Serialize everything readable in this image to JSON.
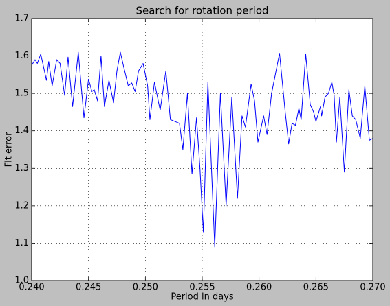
{
  "chart_data": {
    "type": "line",
    "title": "Search for rotation period",
    "x_label": "Period in days",
    "y_label": "Fit error",
    "xlim": [
      0.24,
      0.27
    ],
    "ylim": [
      1.0,
      1.7
    ],
    "xticks": [
      {
        "value": 0.24,
        "label": "0.240"
      },
      {
        "value": 0.245,
        "label": "0.245"
      },
      {
        "value": 0.25,
        "label": "0.250"
      },
      {
        "value": 0.255,
        "label": "0.255"
      },
      {
        "value": 0.26,
        "label": "0.260"
      },
      {
        "value": 0.265,
        "label": "0.265"
      },
      {
        "value": 0.27,
        "label": "0.270"
      }
    ],
    "yticks": [
      {
        "value": 1.0,
        "label": "1.0"
      },
      1.1,
      1.2,
      1.3,
      1.4,
      1.5,
      1.6,
      1.7
    ],
    "grid": true,
    "series": [
      {
        "name": "fit error",
        "color": "#0000ff",
        "x": [
          0.24,
          0.2403,
          0.2405,
          0.2408,
          0.2413,
          0.2415,
          0.2418,
          0.2422,
          0.2425,
          0.2429,
          0.2432,
          0.2436,
          0.2441,
          0.2446,
          0.245,
          0.2453,
          0.2455,
          0.2458,
          0.2461,
          0.2464,
          0.2468,
          0.2472,
          0.2475,
          0.2478,
          0.2481,
          0.2485,
          0.2488,
          0.2491,
          0.2494,
          0.2498,
          0.2502,
          0.2504,
          0.2508,
          0.2513,
          0.2518,
          0.2522,
          0.2526,
          0.253,
          0.2533,
          0.2537,
          0.2541,
          0.2545,
          0.2548,
          0.2551,
          0.2555,
          0.2561,
          0.2566,
          0.2571,
          0.2576,
          0.2581,
          0.2585,
          0.2588,
          0.2593,
          0.2596,
          0.2599,
          0.2604,
          0.2607,
          0.2611,
          0.2618,
          0.2623,
          0.2626,
          0.2629,
          0.2632,
          0.2635,
          0.2637,
          0.2641,
          0.2645,
          0.2648,
          0.265,
          0.2654,
          0.2655,
          0.2658,
          0.2661,
          0.2664,
          0.2666,
          0.2668,
          0.2671,
          0.2675,
          0.2679,
          0.2682,
          0.2685,
          0.2689,
          0.2693,
          0.2697,
          0.27
        ],
        "values": [
          1.575,
          1.59,
          1.58,
          1.605,
          1.535,
          1.585,
          1.52,
          1.59,
          1.58,
          1.495,
          1.597,
          1.465,
          1.61,
          1.435,
          1.538,
          1.505,
          1.51,
          1.48,
          1.6,
          1.465,
          1.535,
          1.475,
          1.56,
          1.61,
          1.57,
          1.52,
          1.528,
          1.505,
          1.56,
          1.58,
          1.52,
          1.43,
          1.53,
          1.455,
          1.56,
          1.43,
          1.425,
          1.42,
          1.35,
          1.5,
          1.285,
          1.435,
          1.3,
          1.13,
          1.53,
          1.09,
          1.5,
          1.2,
          1.49,
          1.22,
          1.44,
          1.41,
          1.525,
          1.48,
          1.37,
          1.44,
          1.39,
          1.5,
          1.607,
          1.45,
          1.365,
          1.42,
          1.415,
          1.46,
          1.43,
          1.605,
          1.47,
          1.45,
          1.425,
          1.465,
          1.44,
          1.49,
          1.5,
          1.53,
          1.495,
          1.37,
          1.49,
          1.29,
          1.51,
          1.44,
          1.43,
          1.38,
          1.52,
          1.375,
          1.38
        ]
      }
    ]
  }
}
